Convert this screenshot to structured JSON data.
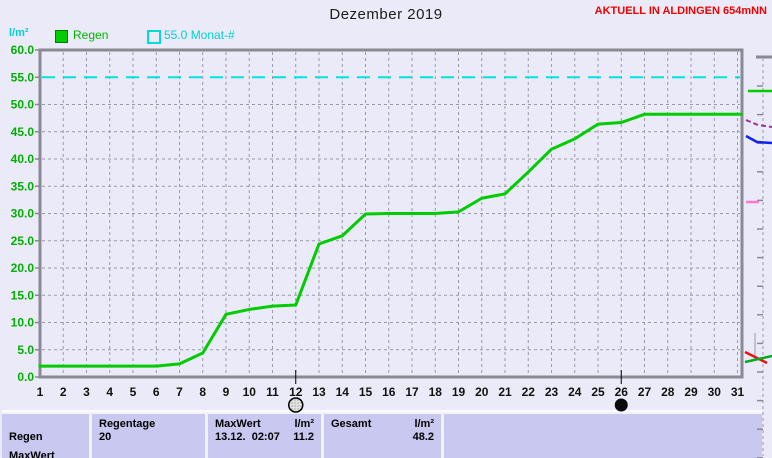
{
  "header": {
    "title": "Dezember 2019",
    "station_label": "AKTUELL IN ALDINGEN 654mNN"
  },
  "legend": {
    "unit_label": "l/m²",
    "rain_label": "Regen",
    "target_label": "55.0 Monat-#"
  },
  "chart_data": {
    "type": "line",
    "title": "Dezember 2019",
    "ylabel": "l/m²",
    "ylim": [
      0,
      60
    ],
    "ytick_step": 5,
    "yticks": [
      "60.0",
      "55.0",
      "50.0",
      "45.0",
      "40.0",
      "35.0",
      "30.0",
      "25.0",
      "20.0",
      "15.0",
      "10.0",
      "5.0",
      "0.0"
    ],
    "x": [
      1,
      2,
      3,
      4,
      5,
      6,
      7,
      8,
      9,
      10,
      11,
      12,
      13,
      14,
      15,
      16,
      17,
      18,
      19,
      20,
      21,
      22,
      23,
      24,
      25,
      26,
      27,
      28,
      29,
      30,
      31
    ],
    "grid": true,
    "legend_position": "top-left",
    "series": [
      {
        "name": "Regen",
        "color": "#00cc00",
        "style": "solid",
        "values": [
          2.0,
          2.0,
          2.0,
          2.0,
          2.0,
          2.0,
          2.4,
          4.4,
          11.5,
          12.4,
          13.0,
          13.2,
          24.4,
          25.9,
          29.9,
          30.0,
          30.0,
          30.0,
          30.3,
          32.8,
          33.6,
          37.6,
          41.8,
          43.7,
          46.4,
          46.7,
          48.2,
          48.2,
          48.2,
          48.2,
          48.2
        ]
      },
      {
        "name": "55.0 Monat-#",
        "color": "#00e2e2",
        "style": "dashed",
        "constant": 55.0
      }
    ],
    "moon_markers": [
      {
        "day": 12,
        "type": "full-moon"
      },
      {
        "day": 26,
        "type": "new-moon"
      }
    ]
  },
  "summary_table": {
    "col1": {
      "label": "Regen",
      "row2_label": "MaxWert"
    },
    "col2": {
      "header": "Regentage",
      "value": "20"
    },
    "col3": {
      "header": "MaxWert",
      "unit": "l/m²",
      "value": "13.12.  02:07",
      "unit_value": "11.2"
    },
    "col4": {
      "header": "Gesamt",
      "unit": "l/m²",
      "unit_value": "48.2"
    }
  },
  "colors": {
    "background": "#eaeaf8",
    "frame": "#8a8a94",
    "grid": "#9a9aa6",
    "rain_line": "#00cc00",
    "target_line": "#00e2e2",
    "ytick_text": "#00b000",
    "xtick_text": "#111111",
    "station_text": "#f40000",
    "table_cell": "#c8c8f0"
  }
}
